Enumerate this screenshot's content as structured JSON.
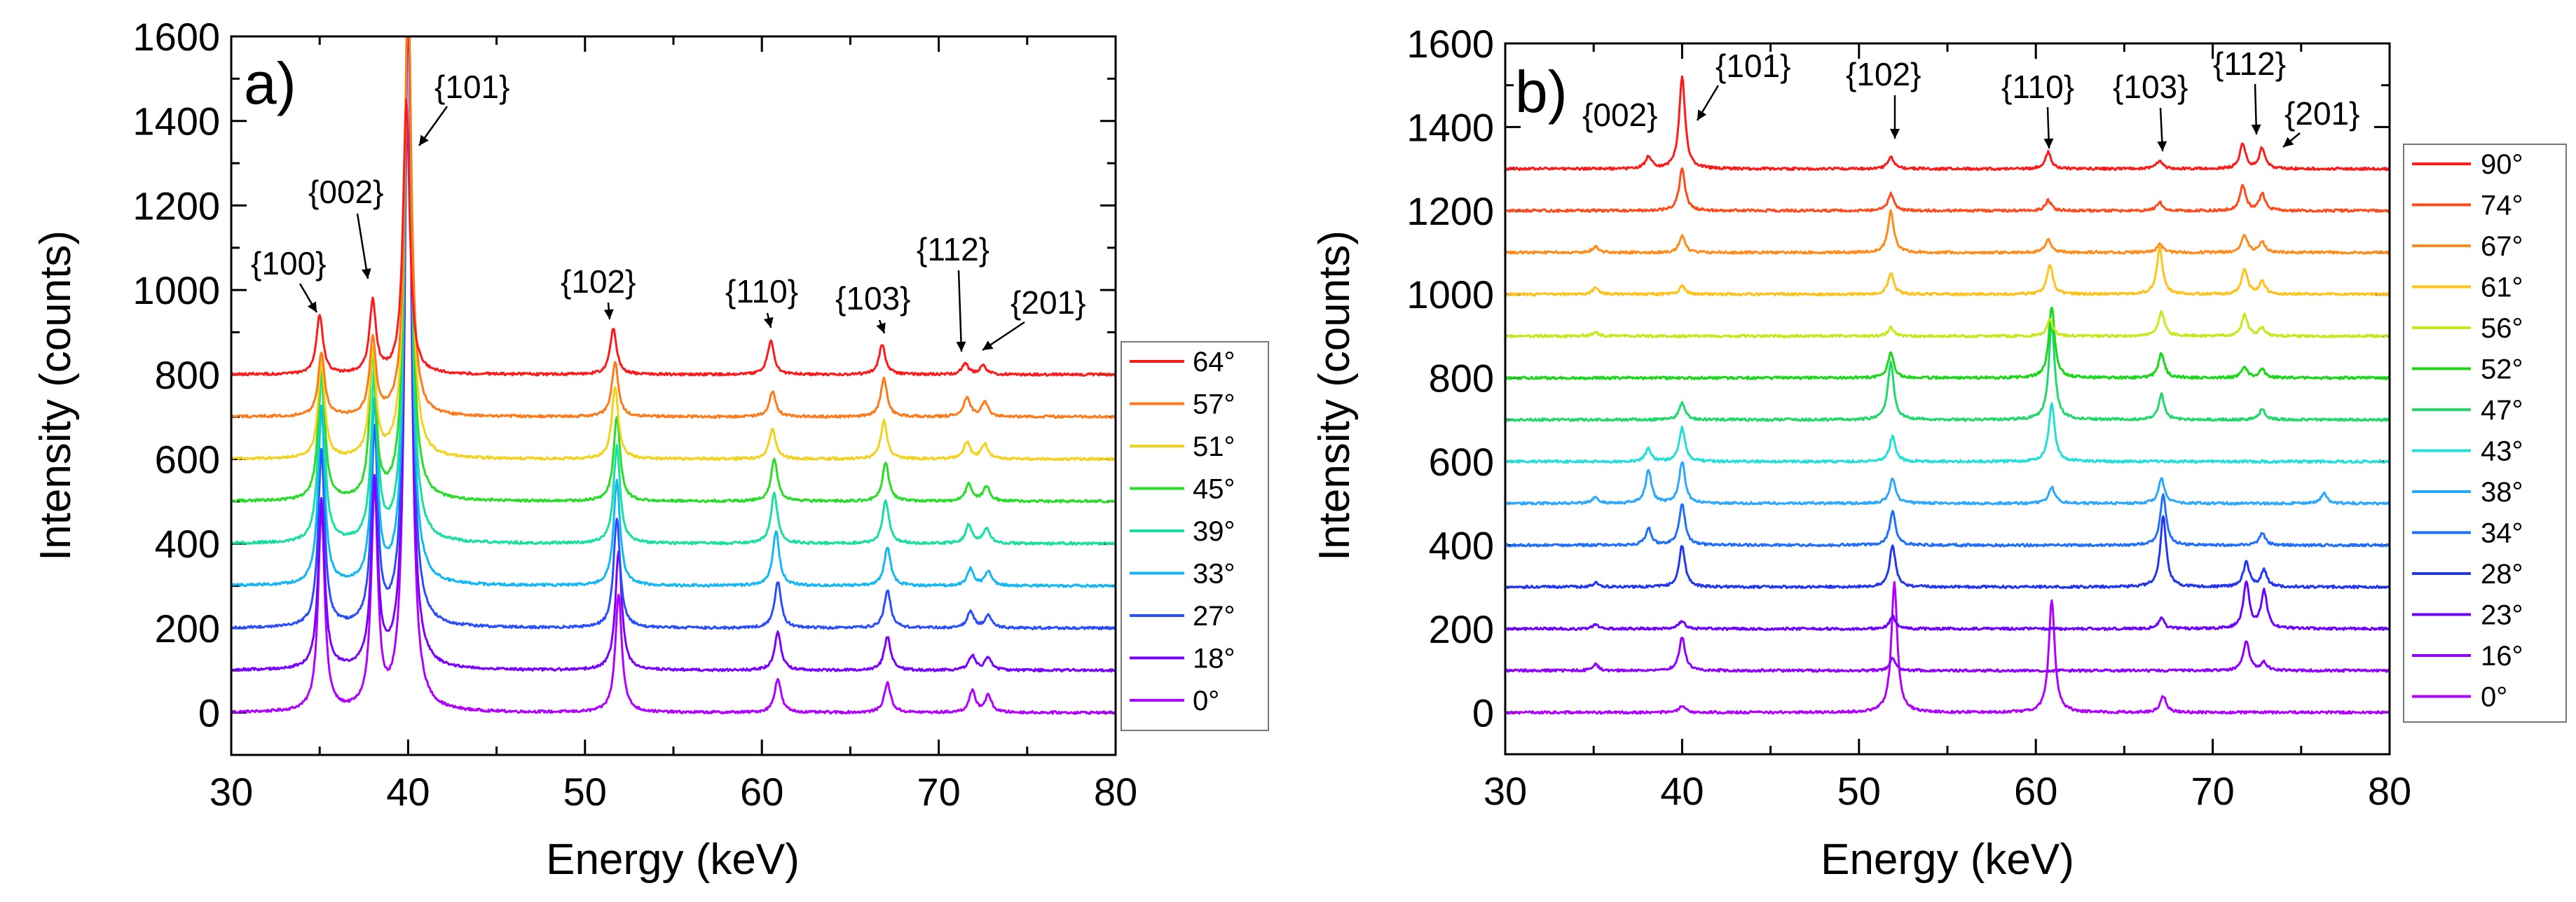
{
  "chart_data": [
    {
      "type": "line",
      "panel_label": "a)",
      "xlabel": "Energy (keV)",
      "ylabel": "Intensity (counts)",
      "xlim": [
        30,
        80
      ],
      "ylim": [
        -100,
        1600
      ],
      "xticks": [
        "30",
        "40",
        "50",
        "60",
        "70",
        "80"
      ],
      "yticks": [
        "0",
        "200",
        "400",
        "600",
        "800",
        "1000",
        "1200",
        "1400",
        "1600"
      ],
      "grid": false,
      "legend_position": "right",
      "series": [
        {
          "name": "0°",
          "color": "#b000ff",
          "offset": 0,
          "peaks": [
            [
              35.1,
              480
            ],
            [
              38.1,
              520
            ],
            [
              40.0,
              1700
            ],
            [
              51.9,
              280
            ],
            [
              60.9,
              80
            ],
            [
              67.1,
              70
            ],
            [
              71.9,
              50
            ],
            [
              72.8,
              40
            ]
          ]
        },
        {
          "name": "18°",
          "color": "#7a00ff",
          "offset": 100,
          "peaks": [
            [
              35.1,
              400
            ],
            [
              38.1,
              440
            ],
            [
              40.0,
              1600
            ],
            [
              51.9,
              280
            ],
            [
              60.9,
              90
            ],
            [
              67.1,
              80
            ],
            [
              71.9,
              35
            ],
            [
              72.8,
              30
            ]
          ]
        },
        {
          "name": "27°",
          "color": "#2a4dff",
          "offset": 200,
          "peaks": [
            [
              35.1,
              420
            ],
            [
              38.1,
              460
            ],
            [
              40.0,
              1600
            ],
            [
              51.8,
              260
            ],
            [
              60.9,
              110
            ],
            [
              67.1,
              90
            ],
            [
              71.8,
              40
            ],
            [
              72.8,
              30
            ]
          ]
        },
        {
          "name": "33°",
          "color": "#12b7f5",
          "offset": 300,
          "peaks": [
            [
              35.1,
              420
            ],
            [
              38.1,
              420
            ],
            [
              40.0,
              1500
            ],
            [
              51.8,
              250
            ],
            [
              60.8,
              130
            ],
            [
              67.1,
              90
            ],
            [
              71.8,
              40
            ],
            [
              72.8,
              35
            ]
          ]
        },
        {
          "name": "39°",
          "color": "#16e0a0",
          "offset": 400,
          "peaks": [
            [
              35.1,
              400
            ],
            [
              38.1,
              400
            ],
            [
              40.0,
              1400
            ],
            [
              51.8,
              230
            ],
            [
              60.7,
              120
            ],
            [
              67.0,
              100
            ],
            [
              71.7,
              45
            ],
            [
              72.7,
              35
            ]
          ]
        },
        {
          "name": "45°",
          "color": "#28dd28",
          "offset": 500,
          "peaks": [
            [
              35.1,
              330
            ],
            [
              38.0,
              340
            ],
            [
              40.0,
              1300
            ],
            [
              51.8,
              200
            ],
            [
              60.7,
              100
            ],
            [
              67.0,
              90
            ],
            [
              71.7,
              40
            ],
            [
              72.7,
              35
            ]
          ]
        },
        {
          "name": "51°",
          "color": "#f2d21a",
          "offset": 600,
          "peaks": [
            [
              35.1,
              230
            ],
            [
              38.0,
              250
            ],
            [
              40.0,
              1200
            ],
            [
              51.7,
              170
            ],
            [
              60.6,
              70
            ],
            [
              66.9,
              90
            ],
            [
              71.6,
              40
            ],
            [
              72.6,
              35
            ]
          ]
        },
        {
          "name": "57°",
          "color": "#ff7a1a",
          "offset": 700,
          "peaks": [
            [
              35.1,
              150
            ],
            [
              38.0,
              180
            ],
            [
              40.0,
              1000
            ],
            [
              51.7,
              130
            ],
            [
              60.6,
              60
            ],
            [
              66.9,
              90
            ],
            [
              71.6,
              45
            ],
            [
              72.6,
              35
            ]
          ]
        },
        {
          "name": "64°",
          "color": "#ff1a1a",
          "offset": 800,
          "peaks": [
            [
              35.0,
              140
            ],
            [
              38.0,
              170
            ],
            [
              39.9,
              650
            ],
            [
              51.6,
              110
            ],
            [
              60.5,
              80
            ],
            [
              66.8,
              70
            ],
            [
              71.5,
              25
            ],
            [
              72.5,
              20
            ]
          ]
        }
      ],
      "annotations": [
        {
          "text": "{100}",
          "x": 35.0,
          "y": 940
        },
        {
          "text": "{002}",
          "x": 38.0,
          "y": 970
        },
        {
          "text": "{101}",
          "x": 40.2,
          "y": 1340
        },
        {
          "text": "{102}",
          "x": 51.6,
          "y": 920
        },
        {
          "text": "{110}",
          "x": 60.5,
          "y": 880
        },
        {
          "text": "{103}",
          "x": 66.8,
          "y": 870
        },
        {
          "text": "{112}",
          "x": 71.5,
          "y": 825
        },
        {
          "text": "{201}",
          "x": 72.6,
          "y": 815
        }
      ]
    },
    {
      "type": "line",
      "panel_label": "b)",
      "xlabel": "Energy (keV)",
      "ylabel": "Intensity (counts)",
      "xlim": [
        30,
        80
      ],
      "ylim": [
        -100,
        1600
      ],
      "xticks": [
        "30",
        "40",
        "50",
        "60",
        "70",
        "80"
      ],
      "yticks": [
        "0",
        "200",
        "400",
        "600",
        "800",
        "1000",
        "1200",
        "1400",
        "1600"
      ],
      "grid": false,
      "legend_position": "right",
      "series": [
        {
          "name": "0°",
          "color": "#b000ff",
          "offset": 0,
          "peaks": [
            [
              40.0,
              15
            ],
            [
              52.0,
              310
            ],
            [
              60.9,
              270
            ],
            [
              67.2,
              40
            ]
          ]
        },
        {
          "name": "16°",
          "color": "#9100ff",
          "offset": 100,
          "peaks": [
            [
              35.1,
              15
            ],
            [
              40.0,
              80
            ],
            [
              51.9,
              30
            ],
            [
              71.9,
              70
            ],
            [
              72.9,
              20
            ]
          ]
        },
        {
          "name": "23°",
          "color": "#6e00ff",
          "offset": 200,
          "peaks": [
            [
              35.1,
              10
            ],
            [
              40.0,
              20
            ],
            [
              51.9,
              30
            ],
            [
              67.1,
              25
            ],
            [
              71.9,
              110
            ],
            [
              72.9,
              90
            ]
          ]
        },
        {
          "name": "28°",
          "color": "#2236f2",
          "offset": 300,
          "peaks": [
            [
              35.1,
              10
            ],
            [
              40.0,
              100
            ],
            [
              51.9,
              100
            ],
            [
              67.2,
              170
            ],
            [
              71.9,
              60
            ],
            [
              72.9,
              40
            ]
          ]
        },
        {
          "name": "34°",
          "color": "#1f6fff",
          "offset": 400,
          "peaks": [
            [
              38.1,
              40
            ],
            [
              40.0,
              100
            ],
            [
              51.9,
              80
            ],
            [
              67.2,
              120
            ],
            [
              72.8,
              30
            ]
          ]
        },
        {
          "name": "38°",
          "color": "#2aa8ff",
          "offset": 500,
          "peaks": [
            [
              35.1,
              15
            ],
            [
              38.1,
              80
            ],
            [
              40.0,
              100
            ],
            [
              51.9,
              60
            ],
            [
              60.9,
              40
            ],
            [
              67.1,
              60
            ],
            [
              76.3,
              25
            ]
          ]
        },
        {
          "name": "43°",
          "color": "#21e0d8",
          "offset": 600,
          "peaks": [
            [
              38.1,
              30
            ],
            [
              40.0,
              80
            ],
            [
              51.9,
              60
            ],
            [
              60.9,
              140
            ]
          ]
        },
        {
          "name": "47°",
          "color": "#1fd96a",
          "offset": 700,
          "peaks": [
            [
              40.0,
              40
            ],
            [
              51.8,
              140
            ],
            [
              60.9,
              230
            ],
            [
              67.1,
              60
            ],
            [
              72.8,
              25
            ]
          ]
        },
        {
          "name": "52°",
          "color": "#18d818",
          "offset": 800,
          "peaks": [
            [
              51.8,
              60
            ],
            [
              60.9,
              170
            ],
            [
              67.1,
              60
            ],
            [
              71.8,
              25
            ],
            [
              72.8,
              20
            ]
          ]
        },
        {
          "name": "56°",
          "color": "#c8e81a",
          "offset": 900,
          "peaks": [
            [
              35.1,
              10
            ],
            [
              51.8,
              20
            ],
            [
              60.8,
              40
            ],
            [
              67.1,
              60
            ],
            [
              71.8,
              50
            ],
            [
              72.8,
              20
            ]
          ]
        },
        {
          "name": "61°",
          "color": "#ffc21a",
          "offset": 1000,
          "peaks": [
            [
              35.1,
              15
            ],
            [
              40.0,
              20
            ],
            [
              51.8,
              50
            ],
            [
              60.8,
              70
            ],
            [
              67.0,
              110
            ],
            [
              71.8,
              60
            ],
            [
              72.8,
              30
            ]
          ]
        },
        {
          "name": "67°",
          "color": "#ff8c1a",
          "offset": 1100,
          "peaks": [
            [
              35.1,
              15
            ],
            [
              40.0,
              40
            ],
            [
              51.8,
              100
            ],
            [
              60.7,
              30
            ],
            [
              67.0,
              20
            ],
            [
              71.8,
              40
            ],
            [
              72.8,
              25
            ]
          ]
        },
        {
          "name": "74°",
          "color": "#ff4a1a",
          "offset": 1200,
          "peaks": [
            [
              40.0,
              100
            ],
            [
              51.8,
              40
            ],
            [
              60.7,
              25
            ],
            [
              67.0,
              20
            ],
            [
              71.7,
              60
            ],
            [
              72.8,
              40
            ]
          ]
        },
        {
          "name": "90°",
          "color": "#ff1a1a",
          "offset": 1300,
          "peaks": [
            [
              38.1,
              30
            ],
            [
              40.0,
              220
            ],
            [
              51.8,
              30
            ],
            [
              60.7,
              40
            ],
            [
              67.0,
              20
            ],
            [
              71.7,
              60
            ],
            [
              72.8,
              50
            ]
          ]
        }
      ],
      "annotations": [
        {
          "text": "{002}",
          "x": 38.0,
          "y": 1330
        },
        {
          "text": "{101}",
          "x": 40.3,
          "y": 1430
        },
        {
          "text": "{102}",
          "x": 51.8,
          "y": 1340
        },
        {
          "text": "{110}",
          "x": 60.7,
          "y": 1345
        },
        {
          "text": "{103}",
          "x": 67.0,
          "y": 1330
        },
        {
          "text": "{112}",
          "x": 71.7,
          "y": 1370
        },
        {
          "text": "{201}",
          "x": 72.9,
          "y": 1360
        }
      ]
    }
  ]
}
